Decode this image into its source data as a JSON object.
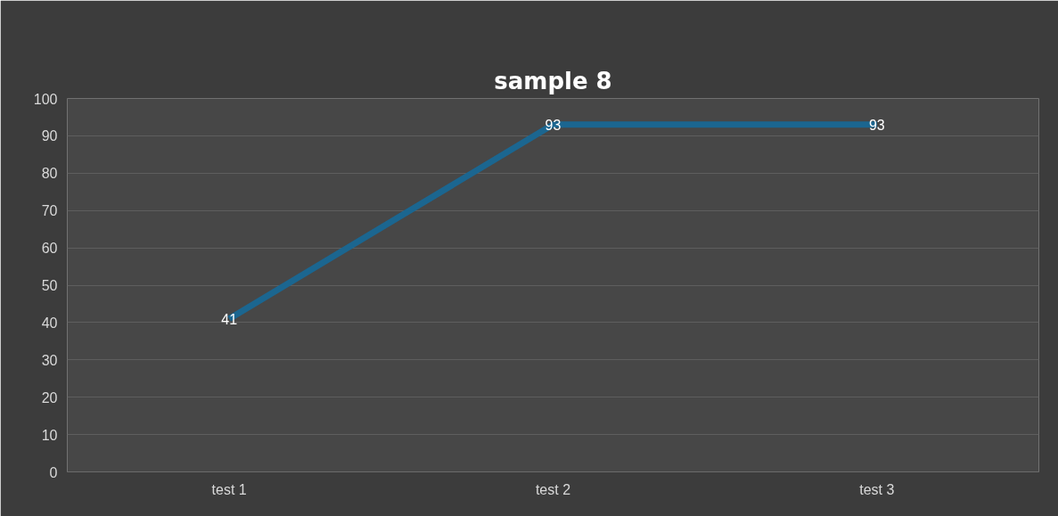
{
  "chart_data": {
    "type": "line",
    "title": "sample 8",
    "categories": [
      "test 1",
      "test 2",
      "test 3"
    ],
    "series": [
      {
        "color": "#1b6690",
        "values": [
          41,
          93,
          93
        ]
      }
    ],
    "ylim": [
      0,
      100
    ],
    "yticks": [
      0,
      10,
      20,
      30,
      40,
      50,
      60,
      70,
      80,
      90,
      100
    ],
    "grid": "y",
    "data_labels": true,
    "marker": "none",
    "line_style": "solid"
  }
}
